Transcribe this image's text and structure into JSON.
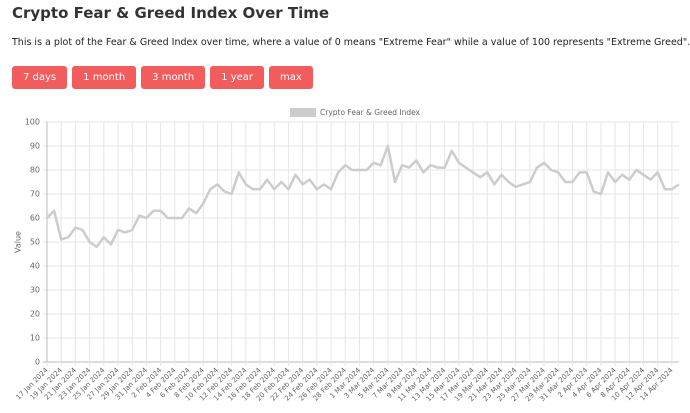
{
  "header": {
    "title": "Crypto Fear & Greed Index Over Time",
    "description": "This is a plot of the Fear & Greed Index over time, where a value of 0 means \"Extreme Fear\" while a value of 100 represents \"Extreme Greed\"."
  },
  "buttons": [
    "7 days",
    "1 month",
    "3 month",
    "1 year",
    "max"
  ],
  "chart_data": {
    "type": "line",
    "y_label": "Value",
    "grid": true,
    "series": [
      {
        "name": "Crypto Fear & Greed Index",
        "color": "#cccccc",
        "values": [
          60,
          63,
          51,
          52,
          56,
          55,
          50,
          48,
          52,
          49,
          55,
          54,
          55,
          61,
          60,
          63,
          63,
          60,
          60,
          60,
          64,
          62,
          66,
          72,
          74,
          71,
          70,
          79,
          74,
          72,
          72,
          76,
          72,
          75,
          72,
          78,
          74,
          76,
          72,
          74,
          72,
          79,
          82,
          80,
          80,
          80,
          83,
          82,
          90,
          75,
          82,
          81,
          84,
          79,
          82,
          81,
          81,
          88,
          83,
          81,
          79,
          77,
          79,
          74,
          78,
          75,
          73,
          74,
          75,
          81,
          83,
          80,
          79,
          75,
          75,
          79,
          79,
          71,
          70,
          79,
          75,
          78,
          76,
          80,
          78,
          76,
          79,
          72,
          72,
          74
        ]
      }
    ],
    "categories": [
      "17 Jan 2024",
      null,
      "19 Jan 2024",
      null,
      "21 Jan 2024",
      null,
      "23 Jan 2024",
      null,
      "25 Jan 2024",
      null,
      "27 Jan 2024",
      null,
      "29 Jan 2024",
      null,
      "31 Jan 2024",
      null,
      "2 Feb 2024",
      null,
      "4 Feb 2024",
      null,
      "6 Feb 2024",
      null,
      "8 Feb 2024",
      null,
      "10 Feb 2024",
      null,
      "12 Feb 2024",
      null,
      "14 Feb 2024",
      null,
      "16 Feb 2024",
      null,
      "18 Feb 2024",
      null,
      "20 Feb 2024",
      null,
      "22 Feb 2024",
      null,
      "24 Feb 2024",
      null,
      "26 Feb 2024",
      null,
      "28 Feb 2024",
      null,
      "1 Mar 2024",
      null,
      "3 Mar 2024",
      null,
      "5 Mar 2024",
      null,
      "7 Mar 2024",
      null,
      "9 Mar 2024",
      null,
      "11 Mar 2024",
      null,
      "13 Mar 2024",
      null,
      "15 Mar 2024",
      null,
      "17 Mar 2024",
      null,
      "19 Mar 2024",
      null,
      "21 Mar 2024",
      null,
      "23 Mar 2024",
      null,
      "25 Mar 2024",
      null,
      "27 Mar 2024",
      null,
      "29 Mar 2024",
      null,
      "31 Mar 2024",
      null,
      "2 Apr 2024",
      null,
      "4 Apr 2024",
      null,
      "6 Apr 2024",
      null,
      "8 Apr 2024",
      null,
      "10 Apr 2024",
      null,
      "12 Apr 2024",
      null,
      "14 Apr 2024",
      null
    ],
    "ylim": [
      0,
      100
    ],
    "yticks": [
      0,
      10,
      20,
      30,
      40,
      50,
      60,
      70,
      80,
      90,
      100
    ]
  }
}
